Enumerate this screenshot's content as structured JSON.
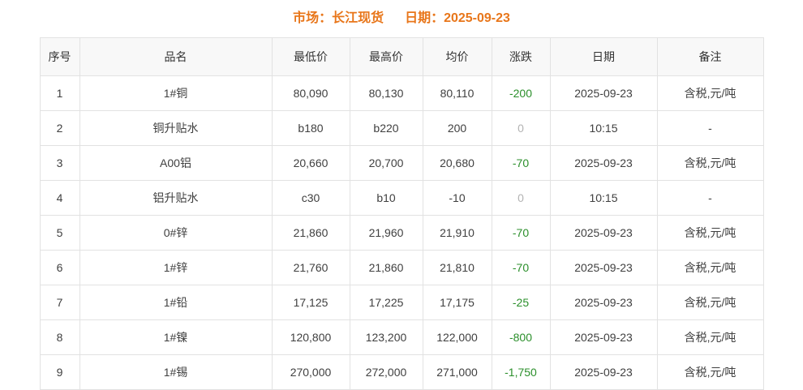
{
  "header": {
    "market_label": "市场：长江现货",
    "date_label": "日期：2025-09-23"
  },
  "table": {
    "columns": [
      {
        "label": "序号"
      },
      {
        "label": "品名"
      },
      {
        "label": "最低价"
      },
      {
        "label": "最高价"
      },
      {
        "label": "均价"
      },
      {
        "label": "涨跌"
      },
      {
        "label": "日期"
      },
      {
        "label": "备注"
      }
    ],
    "rows": [
      {
        "seq": "1",
        "name": "1#铜",
        "low": "80,090",
        "high": "80,130",
        "avg": "80,110",
        "change": "-200",
        "date": "2025-09-23",
        "note": "含税,元/吨"
      },
      {
        "seq": "2",
        "name": "铜升贴水",
        "low": "b180",
        "high": "b220",
        "avg": "200",
        "change": "0",
        "date": "10:15",
        "note": "-"
      },
      {
        "seq": "3",
        "name": "A00铝",
        "low": "20,660",
        "high": "20,700",
        "avg": "20,680",
        "change": "-70",
        "date": "2025-09-23",
        "note": "含税,元/吨"
      },
      {
        "seq": "4",
        "name": "铝升贴水",
        "low": "c30",
        "high": "b10",
        "avg": "-10",
        "change": "0",
        "date": "10:15",
        "note": "-"
      },
      {
        "seq": "5",
        "name": "0#锌",
        "low": "21,860",
        "high": "21,960",
        "avg": "21,910",
        "change": "-70",
        "date": "2025-09-23",
        "note": "含税,元/吨"
      },
      {
        "seq": "6",
        "name": "1#锌",
        "low": "21,760",
        "high": "21,860",
        "avg": "21,810",
        "change": "-70",
        "date": "2025-09-23",
        "note": "含税,元/吨"
      },
      {
        "seq": "7",
        "name": "1#铅",
        "low": "17,125",
        "high": "17,225",
        "avg": "17,175",
        "change": "-25",
        "date": "2025-09-23",
        "note": "含税,元/吨"
      },
      {
        "seq": "8",
        "name": "1#镍",
        "low": "120,800",
        "high": "123,200",
        "avg": "122,000",
        "change": "-800",
        "date": "2025-09-23",
        "note": "含税,元/吨"
      },
      {
        "seq": "9",
        "name": "1#锡",
        "low": "270,000",
        "high": "272,000",
        "avg": "271,000",
        "change": "-1,750",
        "date": "2025-09-23",
        "note": "含税,元/吨"
      }
    ]
  },
  "colors": {
    "title": "#e8761a",
    "change_down": "#2b8f2b",
    "change_zero": "#b3b3b3"
  }
}
